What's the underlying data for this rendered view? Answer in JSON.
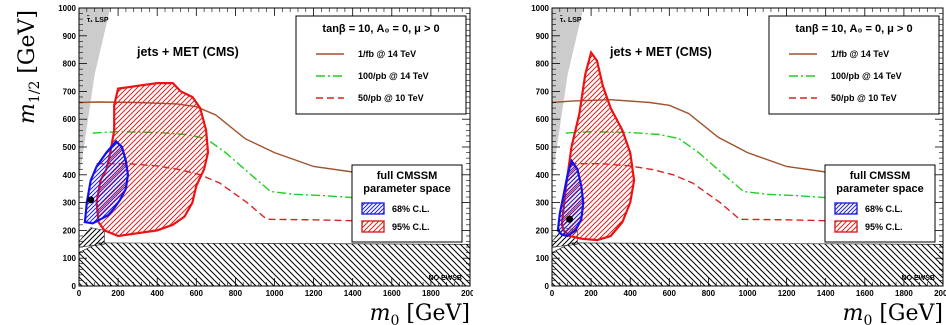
{
  "chart_data": [
    {
      "type": "contour",
      "xlabel_var": "m",
      "xlabel_sub": "0",
      "xlabel_unit": "[GeV]",
      "ylabel_var": "m",
      "ylabel_sub": "1/2",
      "ylabel_unit": "[GeV]",
      "xlim": [
        0,
        2000
      ],
      "ylim": [
        0,
        1000
      ],
      "x_ticks": [
        "0",
        "200",
        "400",
        "600",
        "800",
        "1000",
        "1200",
        "1400",
        "1600",
        "1800",
        "2000"
      ],
      "y_ticks": [
        "0",
        "100",
        "200",
        "300",
        "400",
        "500",
        "600",
        "700",
        "800",
        "900",
        "1000"
      ],
      "annotations": {
        "process": "jets + MET (CMS)",
        "lsp": "τ̃₁ LSP",
        "no_ewsb": "NO EWSB"
      },
      "legend_lines": {
        "title": "tanβ = 10, A₀ = 0, μ > 0",
        "entries": [
          {
            "label": "1/fb @ 14 TeV",
            "color": "#a0522d",
            "style": "solid"
          },
          {
            "label": "100/pb @ 14 TeV",
            "color": "#22cc22",
            "style": "dashdot"
          },
          {
            "label": "50/pb @ 10 TeV",
            "color": "#dd2222",
            "style": "dashed"
          }
        ]
      },
      "legend_regions": {
        "title_line1": "full CMSSM",
        "title_line2": "parameter space",
        "entries": [
          {
            "label": "68% C.L.",
            "color": "#2222dd"
          },
          {
            "label": "95% C.L.",
            "color": "#dd2222"
          }
        ]
      },
      "series": [
        {
          "style_key": "reach_1fb_14tev",
          "color": "#a0522d",
          "points": [
            [
              0,
              660
            ],
            [
              100,
              662
            ],
            [
              300,
              660
            ],
            [
              500,
              655
            ],
            [
              600,
              645
            ],
            [
              700,
              615
            ],
            [
              850,
              530
            ],
            [
              1000,
              480
            ],
            [
              1200,
              430
            ],
            [
              1400,
              410
            ],
            [
              1550,
              395
            ],
            [
              1650,
              385
            ]
          ]
        },
        {
          "style_key": "reach_100pb_14tev",
          "color": "#22cc22",
          "points": [
            [
              70,
              550
            ],
            [
              200,
              555
            ],
            [
              400,
              552
            ],
            [
              550,
              545
            ],
            [
              650,
              530
            ],
            [
              750,
              480
            ],
            [
              880,
              400
            ],
            [
              980,
              340
            ],
            [
              1100,
              330
            ],
            [
              1250,
              325
            ],
            [
              1400,
              318
            ],
            [
              1550,
              315
            ],
            [
              1650,
              312
            ]
          ]
        },
        {
          "style_key": "reach_50pb_10tev",
          "color": "#dd2222",
          "points": [
            [
              90,
              440
            ],
            [
              250,
              440
            ],
            [
              400,
              432
            ],
            [
              520,
              418
            ],
            [
              620,
              400
            ],
            [
              720,
              370
            ],
            [
              860,
              300
            ],
            [
              960,
              240
            ],
            [
              1200,
              238
            ],
            [
              1400,
              235
            ],
            [
              1600,
              232
            ],
            [
              1650,
              230
            ]
          ]
        }
      ],
      "regions": {
        "cl95": [
          [
            160,
            480
          ],
          [
            180,
            560
          ],
          [
            180,
            650
          ],
          [
            200,
            710
          ],
          [
            300,
            720
          ],
          [
            400,
            730
          ],
          [
            480,
            730
          ],
          [
            520,
            700
          ],
          [
            580,
            680
          ],
          [
            620,
            640
          ],
          [
            650,
            560
          ],
          [
            660,
            480
          ],
          [
            640,
            420
          ],
          [
            600,
            360
          ],
          [
            580,
            300
          ],
          [
            540,
            250
          ],
          [
            480,
            220
          ],
          [
            400,
            200
          ],
          [
            300,
            190
          ],
          [
            200,
            180
          ],
          [
            130,
            200
          ],
          [
            100,
            230
          ],
          [
            90,
            300
          ],
          [
            110,
            380
          ],
          [
            140,
            420
          ]
        ],
        "cl68": [
          [
            30,
            230
          ],
          [
            40,
            300
          ],
          [
            60,
            380
          ],
          [
            90,
            430
          ],
          [
            140,
            480
          ],
          [
            190,
            520
          ],
          [
            220,
            500
          ],
          [
            240,
            450
          ],
          [
            250,
            400
          ],
          [
            240,
            350
          ],
          [
            210,
            310
          ],
          [
            180,
            280
          ],
          [
            150,
            255
          ],
          [
            110,
            240
          ],
          [
            70,
            225
          ]
        ],
        "best_fit": [
          60,
          310
        ]
      }
    },
    {
      "type": "contour",
      "xlabel_var": "m",
      "xlabel_sub": "0",
      "xlabel_unit": "[GeV]",
      "ylabel_var": "",
      "ylabel_sub": "",
      "ylabel_unit": "",
      "xlim": [
        0,
        2000
      ],
      "ylim": [
        0,
        1000
      ],
      "x_ticks": [
        "0",
        "200",
        "400",
        "600",
        "800",
        "1000",
        "1200",
        "1400",
        "1600",
        "1800",
        "2000"
      ],
      "y_ticks": [
        "0",
        "100",
        "200",
        "300",
        "400",
        "500",
        "600",
        "700",
        "800",
        "900",
        "1000"
      ],
      "annotations": {
        "process": "jets + MET (CMS)",
        "lsp": "τ̃₁ LSP",
        "no_ewsb": "NO EWSB"
      },
      "legend_lines": {
        "title": "tanβ = 10, A₀ = 0, μ > 0",
        "entries": [
          {
            "label": "1/fb @ 14 TeV",
            "color": "#a0522d",
            "style": "solid"
          },
          {
            "label": "100/pb @ 14 TeV",
            "color": "#22cc22",
            "style": "dashdot"
          },
          {
            "label": "50/pb @ 10 TeV",
            "color": "#dd2222",
            "style": "dashed"
          }
        ]
      },
      "legend_regions": {
        "title_line1": "full CMSSM",
        "title_line2": "parameter space",
        "entries": [
          {
            "label": "68% C.L.",
            "color": "#2222dd"
          },
          {
            "label": "95% C.L.",
            "color": "#dd2222"
          }
        ]
      },
      "series": [
        {
          "style_key": "reach_1fb_14tev",
          "color": "#a0522d",
          "points": [
            [
              0,
              660
            ],
            [
              100,
              665
            ],
            [
              300,
              670
            ],
            [
              500,
              660
            ],
            [
              600,
              650
            ],
            [
              700,
              620
            ],
            [
              850,
              535
            ],
            [
              1000,
              480
            ],
            [
              1200,
              430
            ],
            [
              1400,
              410
            ],
            [
              1550,
              395
            ],
            [
              1650,
              385
            ]
          ]
        },
        {
          "style_key": "reach_100pb_14tev",
          "color": "#22cc22",
          "points": [
            [
              70,
              550
            ],
            [
              200,
              555
            ],
            [
              400,
              552
            ],
            [
              550,
              545
            ],
            [
              650,
              530
            ],
            [
              750,
              480
            ],
            [
              880,
              400
            ],
            [
              980,
              340
            ],
            [
              1100,
              330
            ],
            [
              1250,
              325
            ],
            [
              1400,
              318
            ],
            [
              1550,
              315
            ],
            [
              1650,
              312
            ]
          ]
        },
        {
          "style_key": "reach_50pb_10tev",
          "color": "#dd2222",
          "points": [
            [
              90,
              440
            ],
            [
              250,
              440
            ],
            [
              400,
              432
            ],
            [
              520,
              418
            ],
            [
              620,
              400
            ],
            [
              720,
              370
            ],
            [
              860,
              300
            ],
            [
              960,
              240
            ],
            [
              1200,
              238
            ],
            [
              1400,
              235
            ],
            [
              1600,
              232
            ],
            [
              1650,
              230
            ]
          ]
        }
      ],
      "regions": {
        "cl95": [
          [
            50,
            220
          ],
          [
            70,
            350
          ],
          [
            100,
            500
          ],
          [
            140,
            620
          ],
          [
            170,
            760
          ],
          [
            200,
            840
          ],
          [
            230,
            810
          ],
          [
            260,
            720
          ],
          [
            300,
            640
          ],
          [
            360,
            560
          ],
          [
            400,
            480
          ],
          [
            420,
            380
          ],
          [
            400,
            300
          ],
          [
            360,
            230
          ],
          [
            300,
            180
          ],
          [
            230,
            165
          ],
          [
            150,
            170
          ],
          [
            90,
            180
          ],
          [
            60,
            200
          ]
        ],
        "cl68": [
          [
            30,
            200
          ],
          [
            40,
            260
          ],
          [
            60,
            330
          ],
          [
            80,
            400
          ],
          [
            100,
            450
          ],
          [
            130,
            420
          ],
          [
            150,
            360
          ],
          [
            160,
            300
          ],
          [
            150,
            240
          ],
          [
            120,
            200
          ],
          [
            80,
            180
          ],
          [
            50,
            185
          ]
        ],
        "best_fit": [
          90,
          240
        ]
      }
    }
  ]
}
